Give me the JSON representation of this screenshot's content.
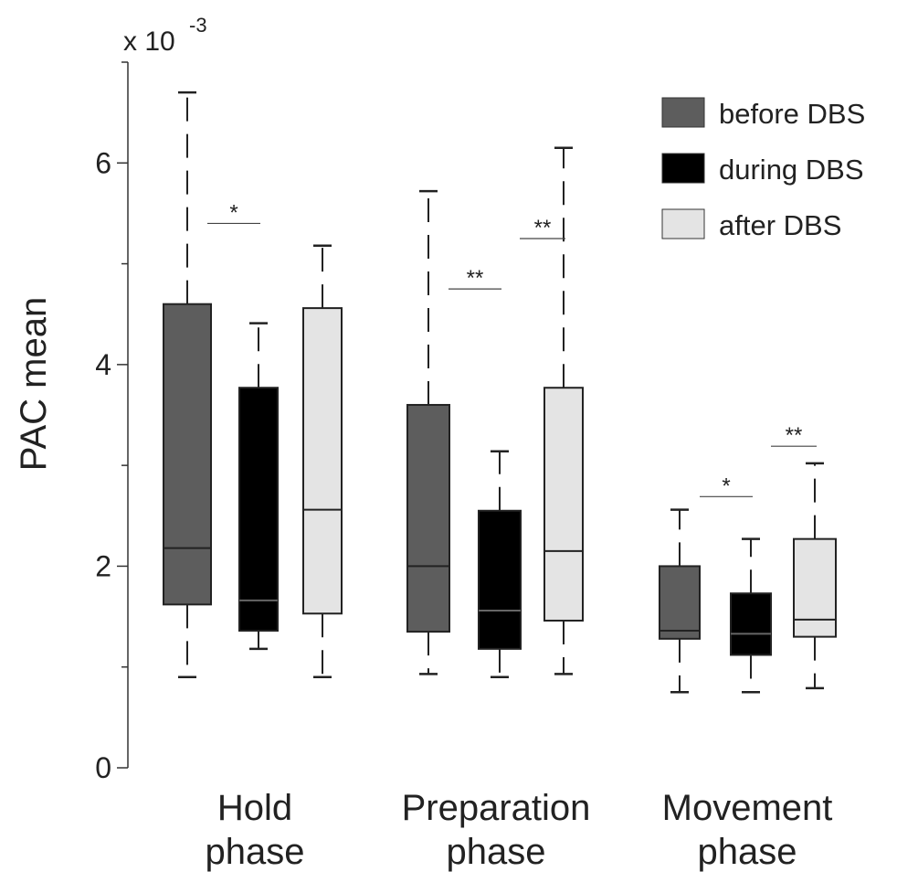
{
  "chart_data": {
    "type": "box",
    "ylabel": "PAC mean",
    "y_scale_label": "x 10",
    "y_scale_exponent": "-3",
    "ylim": [
      0,
      7
    ],
    "yticks": [
      0,
      2,
      4,
      6
    ],
    "yticks_labels": [
      "0",
      "2",
      "4",
      "6"
    ],
    "categories": [
      {
        "line1": "Hold",
        "line2": "phase"
      },
      {
        "line1": "Preparation",
        "line2": "phase"
      },
      {
        "line1": "Movement",
        "line2": "phase"
      }
    ],
    "series": [
      {
        "name": "before DBS",
        "color": "#5d5d5d",
        "boxes": [
          {
            "whisker_low": 0.9,
            "q1": 1.62,
            "median": 2.18,
            "q3": 4.6,
            "whisker_high": 6.7
          },
          {
            "whisker_low": 0.93,
            "q1": 1.35,
            "median": 2.0,
            "q3": 3.6,
            "whisker_high": 5.72
          },
          {
            "whisker_low": 0.75,
            "q1": 1.28,
            "median": 1.36,
            "q3": 2.0,
            "whisker_high": 2.56
          }
        ]
      },
      {
        "name": "during DBS",
        "color": "#000000",
        "boxes": [
          {
            "whisker_low": 1.18,
            "q1": 1.36,
            "median": 1.66,
            "q3": 3.77,
            "whisker_high": 4.41
          },
          {
            "whisker_low": 0.9,
            "q1": 1.18,
            "median": 1.56,
            "q3": 2.55,
            "whisker_high": 3.14
          },
          {
            "whisker_low": 0.75,
            "q1": 1.12,
            "median": 1.33,
            "q3": 1.73,
            "whisker_high": 2.27
          }
        ]
      },
      {
        "name": "after DBS",
        "color": "#e4e4e4",
        "boxes": [
          {
            "whisker_low": 0.9,
            "q1": 1.53,
            "median": 2.56,
            "q3": 4.56,
            "whisker_high": 5.18
          },
          {
            "whisker_low": 0.93,
            "q1": 1.46,
            "median": 2.15,
            "q3": 3.77,
            "whisker_high": 6.15
          },
          {
            "whisker_low": 0.79,
            "q1": 1.3,
            "median": 1.47,
            "q3": 2.27,
            "whisker_high": 3.02
          }
        ]
      }
    ],
    "significance": [
      {
        "category": 0,
        "from": 0,
        "to": 1,
        "y": 5.4,
        "label": "*"
      },
      {
        "category": 1,
        "from": 0,
        "to": 1,
        "y": 4.75,
        "label": "**"
      },
      {
        "category": 1,
        "from": 1,
        "to": 2,
        "y": 5.25,
        "label": "**"
      },
      {
        "category": 2,
        "from": 0,
        "to": 1,
        "y": 2.69,
        "label": "*"
      },
      {
        "category": 2,
        "from": 1,
        "to": 2,
        "y": 3.19,
        "label": "**"
      }
    ],
    "legend_position": "top-right",
    "grid": false
  }
}
